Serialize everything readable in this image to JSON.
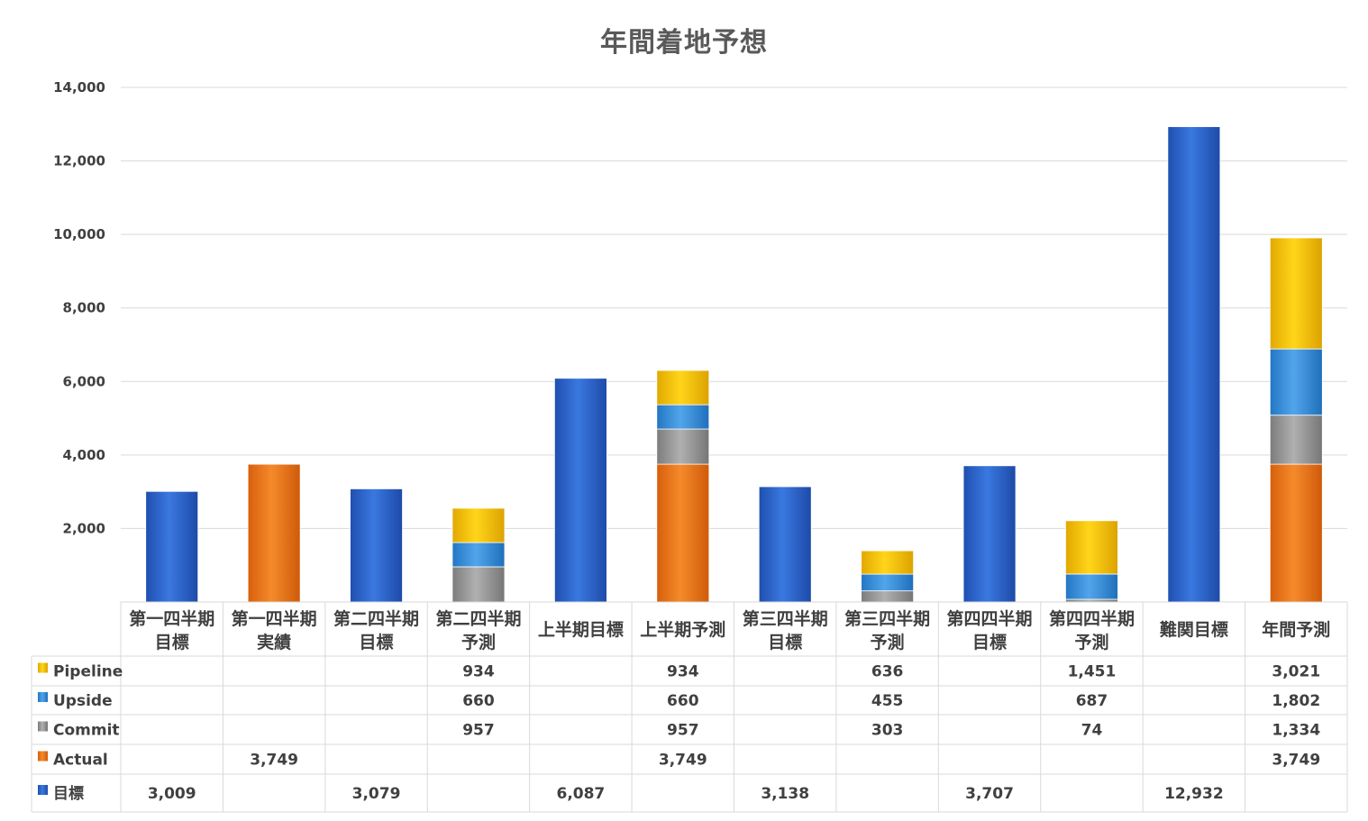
{
  "chart_data": {
    "type": "bar",
    "stacked": true,
    "title": "年間着地予想",
    "ylim": [
      0,
      14000
    ],
    "yticks": [
      "2,000",
      "4,000",
      "6,000",
      "8,000",
      "10,000",
      "12,000",
      "14,000"
    ],
    "ytick_values": [
      2000,
      4000,
      6000,
      8000,
      10000,
      12000,
      14000
    ],
    "grid": true,
    "legend_placement": "data-table",
    "categories": [
      [
        "第一四半期",
        "目標"
      ],
      [
        "第一四半期",
        "実績"
      ],
      [
        "第二四半期",
        "目標"
      ],
      [
        "第二四半期",
        "予測"
      ],
      [
        "上半期目標"
      ],
      [
        "上半期予測"
      ],
      [
        "第三四半期",
        "目標"
      ],
      [
        "第三四半期",
        "予測"
      ],
      [
        "第四四半期",
        "目標"
      ],
      [
        "第四四半期",
        "予測"
      ],
      [
        "難関目標"
      ],
      [
        "年間予測"
      ]
    ],
    "series": [
      {
        "name": "目標",
        "color": "#2f6ad6",
        "values": [
          3009,
          null,
          3079,
          null,
          6087,
          null,
          3138,
          null,
          3707,
          null,
          12932,
          null
        ],
        "labels": [
          "3,009",
          "",
          "3,079",
          "",
          "6,087",
          "",
          "3,138",
          "",
          "3,707",
          "",
          "12,932",
          ""
        ]
      },
      {
        "name": "Actual",
        "color": "#ef7a1a",
        "values": [
          null,
          3749,
          null,
          null,
          null,
          3749,
          null,
          null,
          null,
          null,
          null,
          3749
        ],
        "labels": [
          "",
          "3,749",
          "",
          "",
          "",
          "3,749",
          "",
          "",
          "",
          "",
          "",
          "3,749"
        ]
      },
      {
        "name": "Commit",
        "color": "#9a9a9a",
        "values": [
          null,
          null,
          null,
          957,
          null,
          957,
          null,
          303,
          null,
          74,
          null,
          1334
        ],
        "labels": [
          "",
          "",
          "",
          "957",
          "",
          "957",
          "",
          "303",
          "",
          "74",
          "",
          "1,334"
        ]
      },
      {
        "name": "Upside",
        "color": "#3b8fd8",
        "values": [
          null,
          null,
          null,
          660,
          null,
          660,
          null,
          455,
          null,
          687,
          null,
          1802
        ],
        "labels": [
          "",
          "",
          "",
          "660",
          "",
          "660",
          "",
          "455",
          "",
          "687",
          "",
          "1,802"
        ]
      },
      {
        "name": "Pipeline",
        "color": "#f5c400",
        "values": [
          null,
          null,
          null,
          934,
          null,
          934,
          null,
          636,
          null,
          1451,
          null,
          3021
        ],
        "labels": [
          "",
          "",
          "",
          "934",
          "",
          "934",
          "",
          "636",
          "",
          "1,451",
          "",
          "3,021"
        ]
      }
    ],
    "table_row_order": [
      "Pipeline",
      "Upside",
      "Commit",
      "Actual",
      "目標"
    ]
  }
}
